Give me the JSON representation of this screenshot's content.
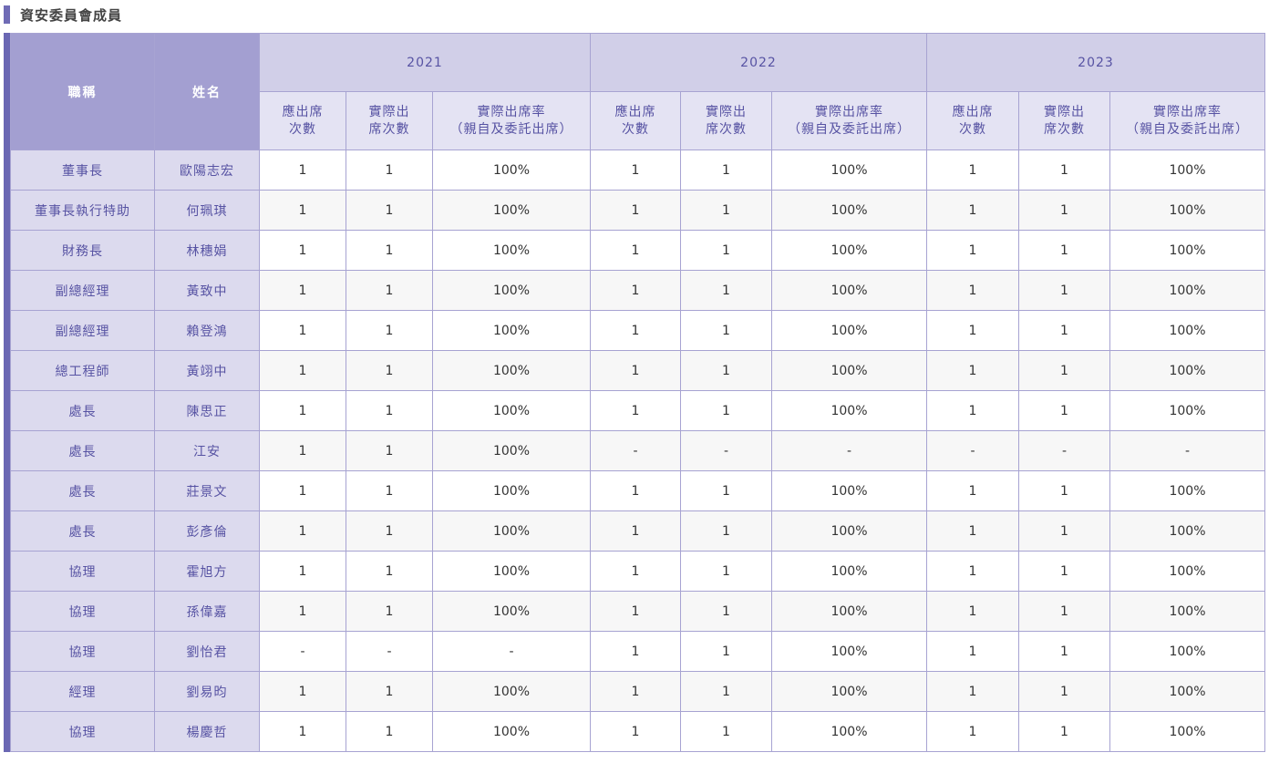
{
  "section_title": "資安委員會成員",
  "header": {
    "title_col": "職稱",
    "name_col": "姓名",
    "years": [
      "2021",
      "2022",
      "2023"
    ],
    "sub_required": [
      "應出席",
      "次數"
    ],
    "sub_actual": [
      "實際出",
      "席次數"
    ],
    "sub_rate": [
      "實際出席率",
      "（親自及委託出席）"
    ]
  },
  "rows": [
    {
      "title": "董事長",
      "name": "歐陽志宏",
      "vals": [
        "1",
        "1",
        "100%",
        "1",
        "1",
        "100%",
        "1",
        "1",
        "100%"
      ]
    },
    {
      "title": "董事長執行特助",
      "name": "何珮琪",
      "vals": [
        "1",
        "1",
        "100%",
        "1",
        "1",
        "100%",
        "1",
        "1",
        "100%"
      ]
    },
    {
      "title": "財務長",
      "name": "林穗娟",
      "vals": [
        "1",
        "1",
        "100%",
        "1",
        "1",
        "100%",
        "1",
        "1",
        "100%"
      ]
    },
    {
      "title": "副總經理",
      "name": "黃致中",
      "vals": [
        "1",
        "1",
        "100%",
        "1",
        "1",
        "100%",
        "1",
        "1",
        "100%"
      ]
    },
    {
      "title": "副總經理",
      "name": "賴登鴻",
      "vals": [
        "1",
        "1",
        "100%",
        "1",
        "1",
        "100%",
        "1",
        "1",
        "100%"
      ]
    },
    {
      "title": "總工程師",
      "name": "黃翊中",
      "vals": [
        "1",
        "1",
        "100%",
        "1",
        "1",
        "100%",
        "1",
        "1",
        "100%"
      ]
    },
    {
      "title": "處長",
      "name": "陳思正",
      "vals": [
        "1",
        "1",
        "100%",
        "1",
        "1",
        "100%",
        "1",
        "1",
        "100%"
      ]
    },
    {
      "title": "處長",
      "name": "江安",
      "vals": [
        "1",
        "1",
        "100%",
        "-",
        "-",
        "-",
        "-",
        "-",
        "-"
      ]
    },
    {
      "title": "處長",
      "name": "莊景文",
      "vals": [
        "1",
        "1",
        "100%",
        "1",
        "1",
        "100%",
        "1",
        "1",
        "100%"
      ]
    },
    {
      "title": "處長",
      "name": "彭彥倫",
      "vals": [
        "1",
        "1",
        "100%",
        "1",
        "1",
        "100%",
        "1",
        "1",
        "100%"
      ]
    },
    {
      "title": "協理",
      "name": "霍旭方",
      "vals": [
        "1",
        "1",
        "100%",
        "1",
        "1",
        "100%",
        "1",
        "1",
        "100%"
      ]
    },
    {
      "title": "協理",
      "name": "孫偉嘉",
      "vals": [
        "1",
        "1",
        "100%",
        "1",
        "1",
        "100%",
        "1",
        "1",
        "100%"
      ]
    },
    {
      "title": "協理",
      "name": "劉怡君",
      "vals": [
        "-",
        "-",
        "-",
        "1",
        "1",
        "100%",
        "1",
        "1",
        "100%"
      ]
    },
    {
      "title": "經理",
      "name": "劉易昀",
      "vals": [
        "1",
        "1",
        "100%",
        "1",
        "1",
        "100%",
        "1",
        "1",
        "100%"
      ]
    },
    {
      "title": "協理",
      "name": "楊慶哲",
      "vals": [
        "1",
        "1",
        "100%",
        "1",
        "1",
        "100%",
        "1",
        "1",
        "100%"
      ]
    }
  ]
}
